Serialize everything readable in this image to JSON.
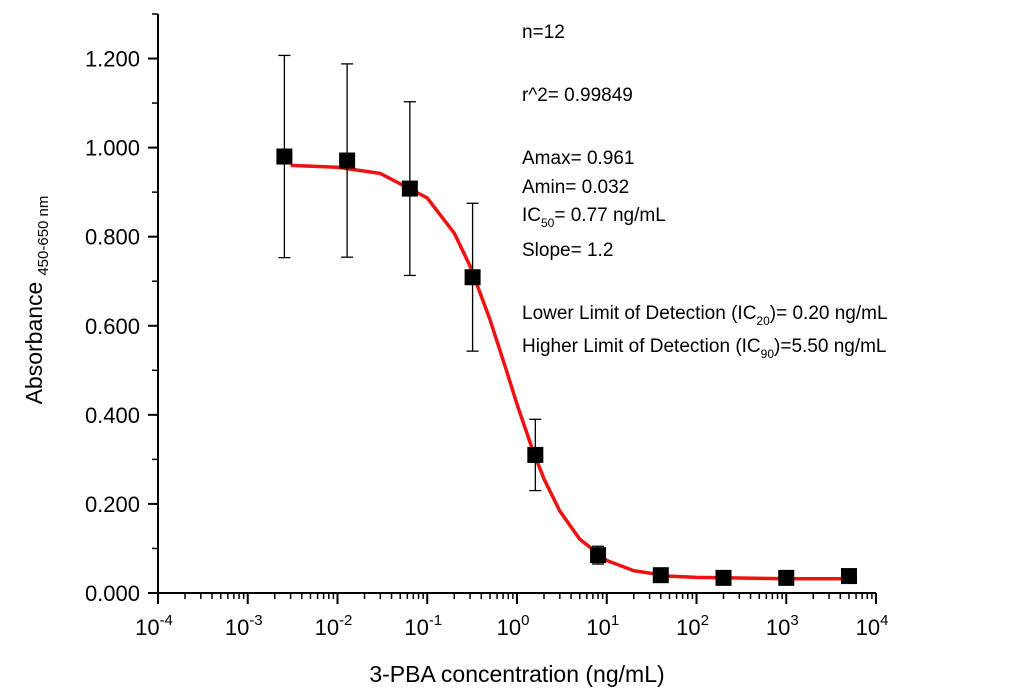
{
  "chart_data": {
    "type": "scatter",
    "x_label": "3-PBA concentration (ng/mL)",
    "y_label": "Absorbance",
    "y_label_sub": "450-650 nm",
    "x_log": true,
    "minor_ticks": true,
    "xlim": [
      0.0001,
      10000
    ],
    "xticks": [
      {
        "value": 0.0001,
        "label": "10",
        "exponent": "-4"
      },
      {
        "value": 0.001,
        "label": "10",
        "exponent": "-3"
      },
      {
        "value": 0.01,
        "label": "10",
        "exponent": "-2"
      },
      {
        "value": 0.1,
        "label": "10",
        "exponent": "-1"
      },
      {
        "value": 1,
        "label": "10",
        "exponent": "0"
      },
      {
        "value": 10,
        "label": "10",
        "exponent": "1"
      },
      {
        "value": 100,
        "label": "10",
        "exponent": "2"
      },
      {
        "value": 1000,
        "label": "10",
        "exponent": "3"
      },
      {
        "value": 10000,
        "label": "10",
        "exponent": "4"
      }
    ],
    "ylim": [
      0,
      1.3
    ],
    "yticks": [
      {
        "value": 0,
        "label": "0.000"
      },
      {
        "value": 0.2,
        "label": "0.200"
      },
      {
        "value": 0.4,
        "label": "0.400"
      },
      {
        "value": 0.6,
        "label": "0.600"
      },
      {
        "value": 0.8,
        "label": "0.800"
      },
      {
        "value": 1,
        "label": "1.000"
      },
      {
        "value": 1.2,
        "label": "1.200"
      }
    ],
    "y_minor_step": 0.1,
    "marker_color": "#000000",
    "x": [
      0.00256,
      0.0128,
      0.064,
      0.32,
      1.6,
      8,
      40,
      200,
      1000,
      5000
    ],
    "values": [
      0.98,
      0.971,
      0.908,
      0.709,
      0.31,
      0.085,
      0.04,
      0.034,
      0.034,
      0.038
    ],
    "errors": [
      0.227,
      0.217,
      0.195,
      0.166,
      0.08,
      0.02,
      0.005,
      0.004,
      0.004,
      0.005
    ],
    "fit": {
      "color": "#ee1111",
      "x": [
        0.003,
        0.01,
        0.03,
        0.1,
        0.2,
        0.3,
        0.5,
        0.77,
        1,
        1.5,
        2,
        3,
        5,
        10,
        20,
        50,
        100,
        1000,
        5000
      ],
      "values": [
        0.96,
        0.956,
        0.942,
        0.887,
        0.808,
        0.734,
        0.614,
        0.497,
        0.424,
        0.32,
        0.256,
        0.184,
        0.121,
        0.073,
        0.05,
        0.038,
        0.035,
        0.032,
        0.032
      ]
    },
    "annotations": [
      {
        "parts": [
          {
            "text": "n=12"
          }
        ]
      },
      {
        "parts": [
          {
            "text": "r^2=  0.99849"
          }
        ]
      },
      {
        "parts": [
          {
            "text": "Amax= 0.961"
          }
        ]
      },
      {
        "parts": [
          {
            "text": "Amin= 0.032"
          }
        ]
      },
      {
        "parts": [
          {
            "text": " IC"
          },
          {
            "text": "50",
            "sub": true
          },
          {
            "text": "= 0.77 ng/mL"
          }
        ]
      },
      {
        "parts": [
          {
            "text": "Slope= 1.2"
          }
        ]
      },
      {
        "parts": [
          {
            "text": "Lower Limit of Detection (IC"
          },
          {
            "text": "20",
            "sub": true
          },
          {
            "text": ")= 0.20 ng/mL"
          }
        ]
      },
      {
        "parts": [
          {
            "text": "Higher Limit of Detection (IC"
          },
          {
            "text": "90",
            "sub": true
          },
          {
            "text": ")=5.50 ng/mL"
          }
        ]
      }
    ]
  }
}
